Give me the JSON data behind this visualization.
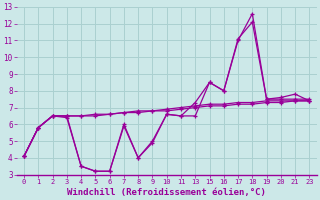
{
  "bg_color": "#cce8e8",
  "grid_color": "#aad0d0",
  "line_color": "#990099",
  "xlabel": "Windchill (Refroidissement éolien,°C)",
  "xlim": [
    -0.5,
    20.5
  ],
  "ylim": [
    3,
    13
  ],
  "xtick_labels": [
    "0",
    "1",
    "2",
    "3",
    "4",
    "5",
    "6",
    "7",
    "8",
    "9",
    "1011",
    "13",
    "15",
    "1516",
    "1617",
    "1718",
    "1819",
    "1920",
    "2021",
    "23"
  ],
  "xtick_labels_display": [
    "0",
    "1",
    "2",
    "3",
    "4",
    "5",
    "6",
    "7",
    "8",
    "9",
    "1011",
    "13",
    "15",
    "1516",
    "17",
    "18",
    "1920",
    "21",
    "23"
  ],
  "x_labels": [
    "0",
    "1",
    "2",
    "3",
    "4",
    "5",
    "6",
    "7",
    "8",
    "9",
    "10",
    "11",
    "13",
    "15",
    "16",
    "17",
    "18",
    "19",
    "20",
    "21",
    "23"
  ],
  "yticks": [
    3,
    4,
    5,
    6,
    7,
    8,
    9,
    10,
    11,
    12,
    13
  ],
  "series": [
    {
      "xi": [
        0,
        1,
        2,
        3,
        4,
        5,
        6,
        7,
        8,
        9,
        10,
        11,
        12,
        13,
        14,
        15,
        16,
        17,
        18,
        19,
        20
      ],
      "y": [
        4.1,
        5.8,
        6.5,
        6.5,
        3.5,
        3.2,
        3.2,
        5.9,
        4.0,
        4.9,
        6.6,
        6.5,
        6.5,
        8.5,
        8.0,
        11.0,
        12.6,
        7.5,
        7.5,
        7.5,
        7.5
      ]
    },
    {
      "xi": [
        0,
        1,
        2,
        3,
        4,
        5,
        6,
        7,
        8,
        9,
        10,
        11,
        12,
        13,
        14,
        15,
        16,
        17,
        18,
        19,
        20
      ],
      "y": [
        4.1,
        5.8,
        6.5,
        6.4,
        3.5,
        3.2,
        3.2,
        6.0,
        4.0,
        5.0,
        6.6,
        6.5,
        7.3,
        8.5,
        8.0,
        11.1,
        12.1,
        7.5,
        7.6,
        7.8,
        7.4
      ]
    },
    {
      "xi": [
        0,
        1,
        2,
        3,
        4,
        5,
        6,
        7,
        8,
        9,
        10,
        11,
        12,
        13,
        14,
        15,
        16,
        17,
        18,
        19,
        20
      ],
      "y": [
        4.1,
        5.8,
        6.5,
        6.5,
        6.5,
        6.5,
        6.6,
        6.7,
        6.7,
        6.8,
        6.8,
        6.9,
        7.0,
        7.1,
        7.1,
        7.2,
        7.2,
        7.3,
        7.3,
        7.4,
        7.4
      ]
    },
    {
      "xi": [
        0,
        1,
        2,
        3,
        4,
        5,
        6,
        7,
        8,
        9,
        10,
        11,
        12,
        13,
        14,
        15,
        16,
        17,
        18,
        19,
        20
      ],
      "y": [
        4.1,
        5.8,
        6.5,
        6.5,
        6.5,
        6.6,
        6.6,
        6.7,
        6.8,
        6.8,
        6.9,
        7.0,
        7.1,
        7.2,
        7.2,
        7.3,
        7.3,
        7.4,
        7.4,
        7.4,
        7.4
      ]
    }
  ]
}
